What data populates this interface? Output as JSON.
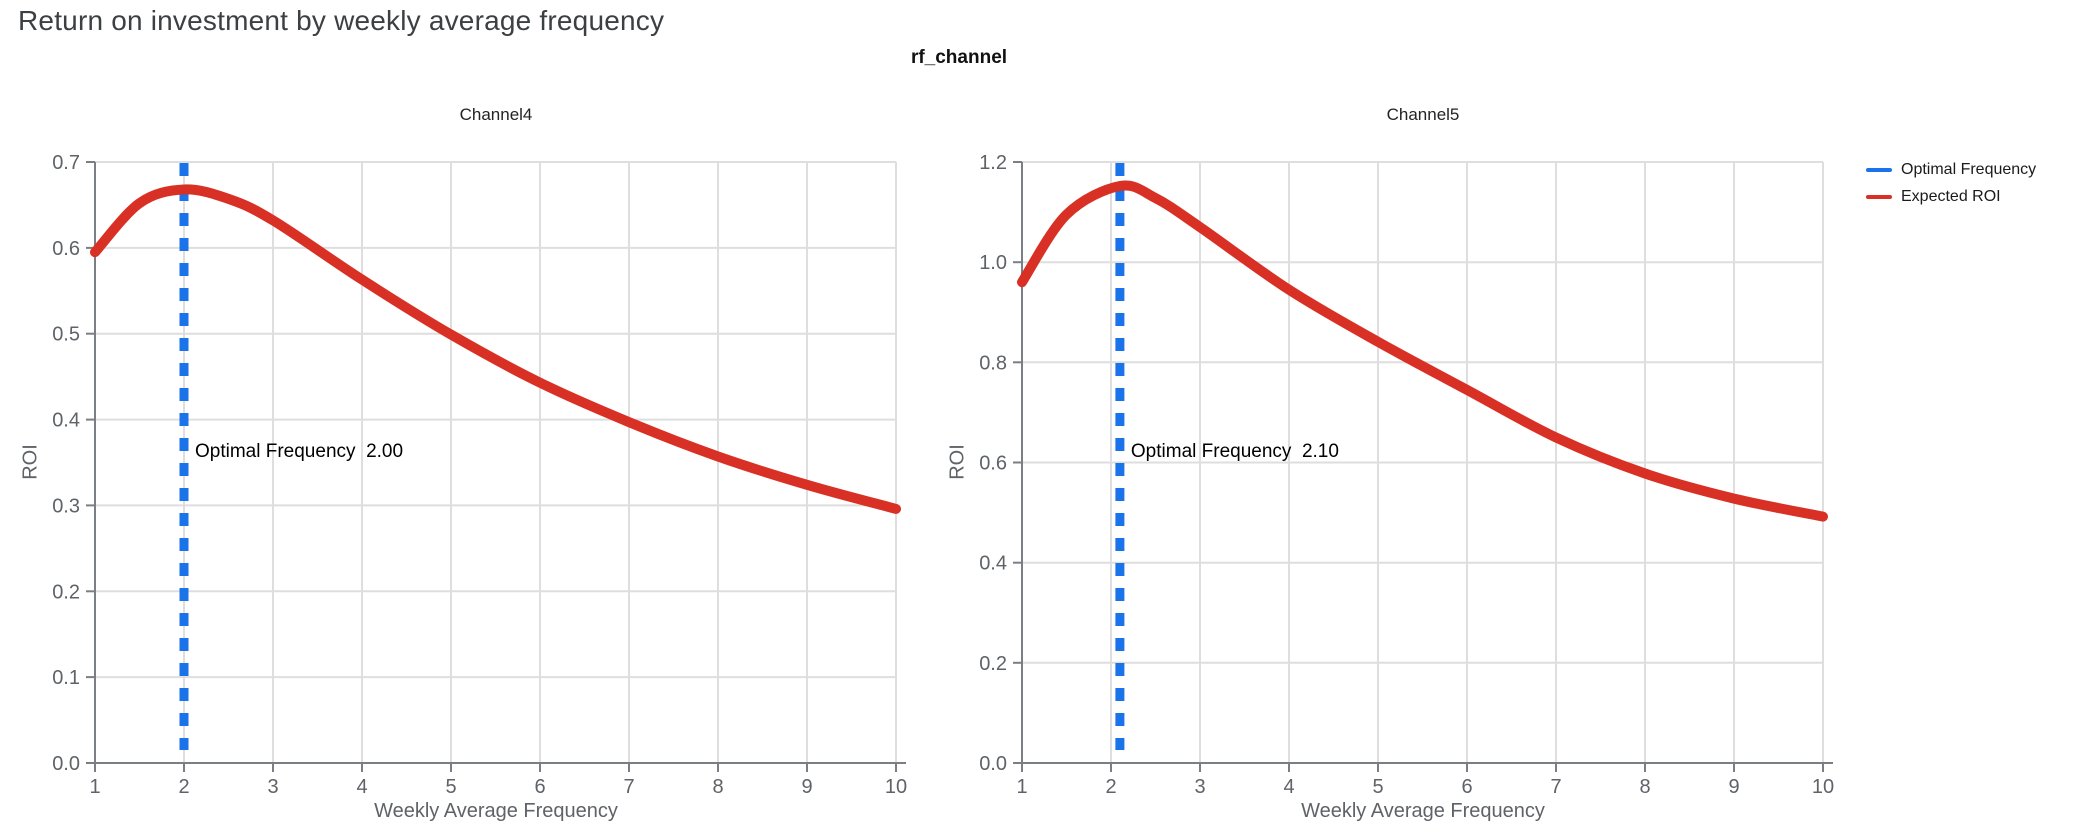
{
  "page": {
    "title": "Return on investment by weekly average frequency"
  },
  "facet": {
    "title": "rf_channel"
  },
  "legend": {
    "items": [
      {
        "label": "Optimal Frequency",
        "color": "#1a73e8"
      },
      {
        "label": "Expected ROI",
        "color": "#d93025"
      }
    ]
  },
  "colors": {
    "roi_line": "#d93025",
    "optimal_line": "#1a73e8",
    "grid": "#dedede",
    "axis": "#7a7f85",
    "tick_text": "#5f6368",
    "title_text": "#3c4043",
    "annotation_text": "#000000"
  },
  "chart_data": [
    {
      "type": "line",
      "title": "Channel4",
      "xlabel": "Weekly Average Frequency",
      "ylabel": "ROI",
      "xlim": [
        1,
        10
      ],
      "ylim": [
        0,
        0.7
      ],
      "x_ticks": [
        "1",
        "2",
        "3",
        "4",
        "5",
        "6",
        "7",
        "8",
        "9",
        "10"
      ],
      "y_ticks": [
        "0.0",
        "0.1",
        "0.2",
        "0.3",
        "0.4",
        "0.5",
        "0.6",
        "0.7"
      ],
      "grid": true,
      "legend_position": "outside-right",
      "optimal_frequency": 2.0,
      "annotation": "Optimal Frequency  2.00",
      "series": [
        {
          "name": "Expected ROI",
          "x": [
            1,
            1.5,
            2,
            2.5,
            3,
            4,
            5,
            6,
            7,
            8,
            9,
            10
          ],
          "y": [
            0.595,
            0.652,
            0.668,
            0.657,
            0.632,
            0.563,
            0.499,
            0.443,
            0.397,
            0.357,
            0.324,
            0.296
          ]
        }
      ]
    },
    {
      "type": "line",
      "title": "Channel5",
      "xlabel": "Weekly Average Frequency",
      "ylabel": "ROI",
      "xlim": [
        1,
        10
      ],
      "ylim": [
        0,
        1.2
      ],
      "x_ticks": [
        "1",
        "2",
        "3",
        "4",
        "5",
        "6",
        "7",
        "8",
        "9",
        "10"
      ],
      "y_ticks": [
        "0.0",
        "0.2",
        "0.4",
        "0.6",
        "0.8",
        "1.0",
        "1.2"
      ],
      "grid": true,
      "legend_position": "outside-right",
      "optimal_frequency": 2.1,
      "annotation": "Optimal Frequency  2.10",
      "series": [
        {
          "name": "Expected ROI",
          "x": [
            1,
            1.5,
            2.1,
            2.5,
            3,
            4,
            5,
            6,
            7,
            8,
            9,
            10
          ],
          "y": [
            0.96,
            1.095,
            1.152,
            1.128,
            1.07,
            0.945,
            0.841,
            0.745,
            0.65,
            0.578,
            0.528,
            0.492
          ]
        }
      ]
    }
  ]
}
